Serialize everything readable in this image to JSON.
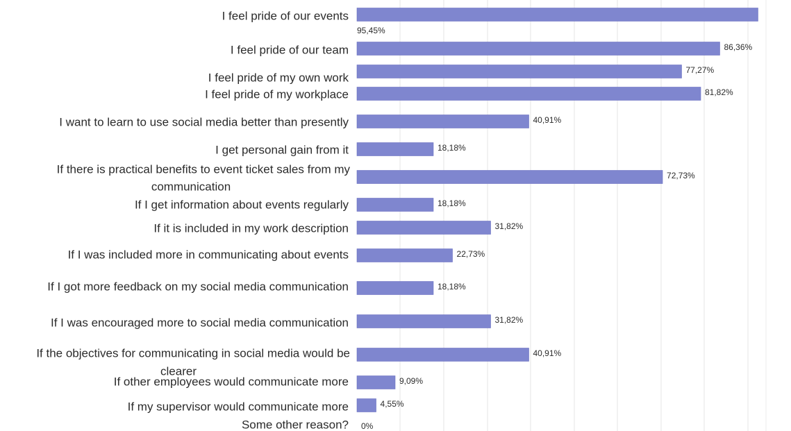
{
  "chart_data": {
    "type": "bar",
    "orientation": "horizontal",
    "title": "",
    "xlabel": "",
    "ylabel": "",
    "xlim": [
      0,
      100
    ],
    "grid": true,
    "legend": "none",
    "bar_color": "#7f86cf",
    "categories": [
      "I feel pride of our events",
      "I feel pride of our team",
      "I feel pride of my own work",
      "I feel pride of my workplace",
      "I want to learn to use social media better than presently",
      "I get personal gain from it",
      "If there is practical benefits to event ticket sales from my communication",
      "If I get information about events regularly",
      "If it is included in my work description",
      "If I was included more in communicating about events",
      "If I got more feedback on my social media communication",
      "If I was encouraged more to social media communication",
      "If the objectives for communicating in social media would be clearer",
      "If other employees would communicate more",
      "If my supervisor would communicate more",
      "Some other reason?"
    ],
    "values": [
      95.45,
      86.36,
      77.27,
      81.82,
      40.91,
      18.18,
      72.73,
      18.18,
      31.82,
      22.73,
      18.18,
      31.82,
      40.91,
      9.09,
      4.55,
      0
    ],
    "value_labels": [
      "95,45%",
      "86,36%",
      "77,27%",
      "81,82%",
      "40,91%",
      "18,18%",
      "72,73%",
      "18,18%",
      "31,82%",
      "22,73%",
      "18,18%",
      "31,82%",
      "40,91%",
      "9,09%",
      "4,55%",
      "0%"
    ]
  }
}
